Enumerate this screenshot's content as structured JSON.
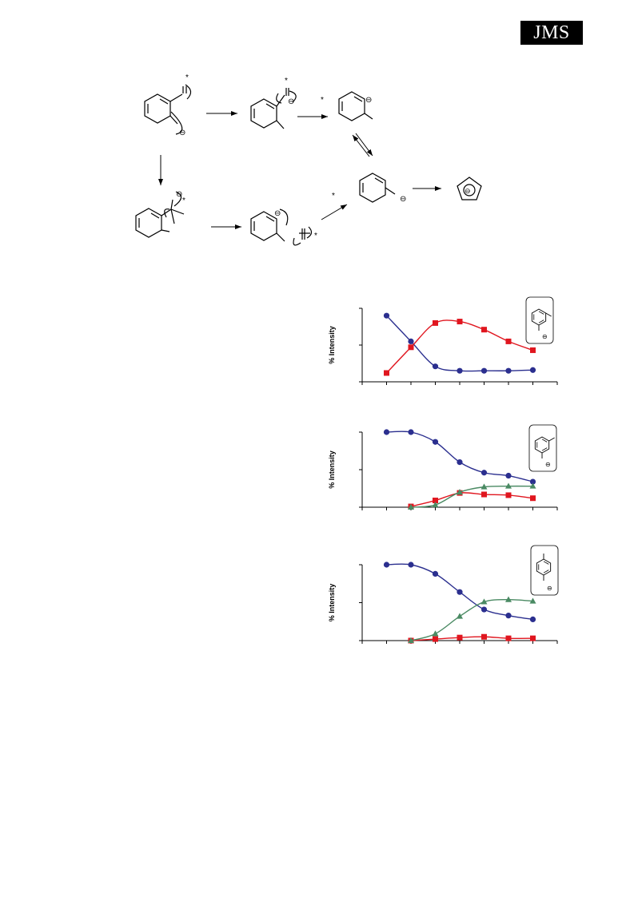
{
  "header": {
    "journal_logo": "JMS"
  },
  "scheme": {
    "star": "*",
    "charge": "⊖"
  },
  "chart_data": [
    {
      "type": "line",
      "ylabel": "% Intensity",
      "xlim": [
        0,
        8
      ],
      "ylim": [
        0,
        100
      ],
      "grid": false,
      "inset_structure": "ortho-methylphenyl-anion-icon",
      "series": [
        {
          "color": "#2B2F8F",
          "marker": "circle",
          "x": [
            1,
            2,
            3,
            4,
            5,
            6,
            7
          ],
          "values": [
            90,
            55,
            21,
            15,
            15,
            15,
            16
          ]
        },
        {
          "color": "#E0161F",
          "marker": "square",
          "x": [
            1,
            2,
            3,
            4,
            5,
            6,
            7
          ],
          "values": [
            12,
            47,
            80,
            82,
            71,
            55,
            43
          ]
        }
      ]
    },
    {
      "type": "line",
      "ylabel": "% Intensity",
      "xlim": [
        0,
        8
      ],
      "ylim": [
        0,
        100
      ],
      "grid": false,
      "inset_structure": "meta-methylphenyl-anion-icon",
      "series": [
        {
          "color": "#2B2F8F",
          "marker": "circle",
          "x": [
            1,
            2,
            3,
            4,
            5,
            6,
            7
          ],
          "values": [
            100,
            100,
            87,
            60,
            46,
            42,
            34
          ]
        },
        {
          "color": "#E0161F",
          "marker": "square",
          "x": [
            2,
            3,
            4,
            5,
            6,
            7
          ],
          "values": [
            1,
            9,
            19,
            17,
            16,
            12
          ]
        },
        {
          "color": "#4A8A63",
          "marker": "triangle",
          "x": [
            2,
            3,
            4,
            5,
            6,
            7
          ],
          "values": [
            0,
            3,
            20,
            27,
            28,
            28
          ]
        }
      ]
    },
    {
      "type": "line",
      "ylabel": "% Intensity",
      "xlim": [
        0,
        8
      ],
      "ylim": [
        0,
        100
      ],
      "grid": false,
      "inset_structure": "para-methylphenyl-anion-icon",
      "series": [
        {
          "color": "#2B2F8F",
          "marker": "circle",
          "x": [
            1,
            2,
            3,
            4,
            5,
            6,
            7
          ],
          "values": [
            100,
            100,
            88,
            64,
            41,
            33,
            28
          ]
        },
        {
          "color": "#E0161F",
          "marker": "square",
          "x": [
            2,
            3,
            4,
            5,
            6,
            7
          ],
          "values": [
            0,
            2,
            4,
            5,
            3,
            3
          ]
        },
        {
          "color": "#4A8A63",
          "marker": "triangle",
          "x": [
            2,
            3,
            4,
            5,
            6,
            7
          ],
          "values": [
            0,
            9,
            32,
            51,
            54,
            52
          ]
        }
      ]
    }
  ]
}
